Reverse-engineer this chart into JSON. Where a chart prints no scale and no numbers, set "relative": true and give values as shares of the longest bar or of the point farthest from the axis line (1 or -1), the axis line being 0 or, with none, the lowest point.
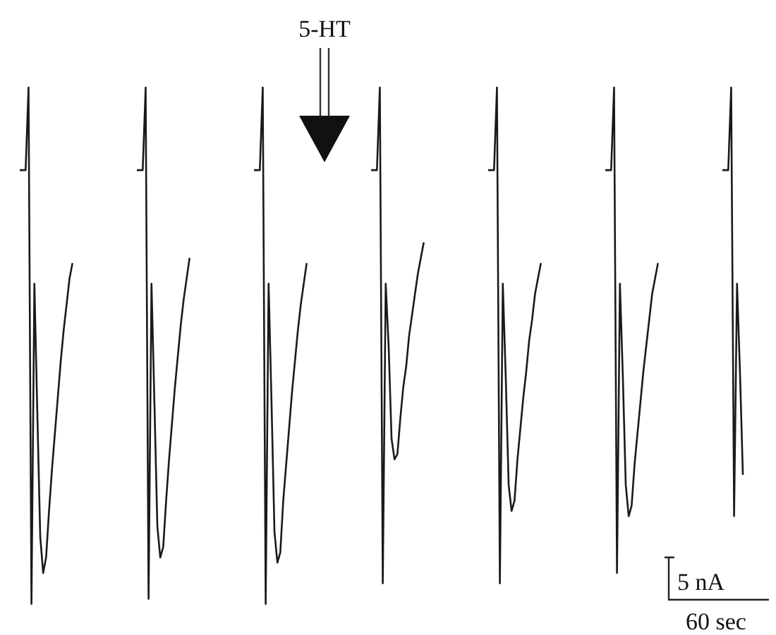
{
  "chart_data": {
    "type": "line",
    "relative": true,
    "annotations": [
      "5-HT",
      "5 nA",
      "60 sec"
    ],
    "categories": [
      null,
      null,
      null,
      null,
      null,
      null,
      null,
      null,
      null,
      null,
      null,
      null,
      null,
      null,
      null,
      null,
      null,
      null,
      null,
      null,
      null,
      null,
      null,
      null,
      null,
      null,
      null,
      null,
      null,
      null,
      null,
      null,
      null,
      null,
      null,
      null,
      null,
      null,
      null,
      null,
      null,
      null,
      null,
      null,
      null,
      null,
      null,
      null,
      null,
      null,
      null,
      null,
      null,
      null,
      null,
      null,
      null,
      null,
      null,
      null,
      null,
      null,
      null,
      null,
      null,
      null,
      null,
      null,
      null,
      null,
      null,
      null,
      null,
      null,
      null,
      null,
      null,
      null,
      null,
      null,
      null,
      null,
      null,
      null,
      null,
      null,
      null,
      null,
      null,
      null,
      null,
      null,
      null,
      null,
      null,
      null,
      null,
      null,
      null,
      null,
      null,
      null,
      null,
      null,
      null,
      null,
      null,
      null,
      null,
      null,
      null,
      null,
      null,
      null,
      null,
      null,
      null,
      null,
      null,
      null,
      null,
      null,
      null,
      null,
      null,
      null,
      null,
      null,
      null,
      null,
      null,
      null,
      null,
      null,
      null,
      null,
      null,
      null,
      null,
      null,
      null,
      null,
      null,
      null,
      null,
      null,
      null,
      null,
      null,
      null,
      null,
      null,
      null,
      null,
      null,
      null,
      null,
      null,
      null,
      null,
      null,
      null,
      null,
      null,
      null,
      null,
      null,
      null,
      null,
      null,
      null,
      null,
      null,
      null,
      null,
      null,
      null,
      null,
      null,
      null,
      null,
      null,
      null,
      null,
      null,
      null,
      null,
      null,
      null,
      null,
      null,
      null,
      null,
      null,
      null,
      null,
      null,
      null,
      null,
      null,
      null,
      null,
      null,
      null,
      null,
      null,
      null,
      null,
      null,
      null,
      null,
      null,
      null,
      null,
      null,
      null,
      null,
      null,
      null,
      null,
      null,
      null,
      null,
      null,
      null,
      null,
      null,
      null,
      null,
      null,
      null,
      null,
      null,
      null,
      null,
      null,
      null,
      null,
      null,
      null,
      null,
      null,
      null,
      null,
      null,
      null,
      null,
      null
    ],
    "series": [
      {
        "color": "#1a1a1a",
        "values": [
          0.84,
          0.84,
          0.84,
          1.0,
          0,
          0.62,
          0.37,
          0.13,
          0.06,
          0.09,
          0.18,
          0.26,
          0.33,
          0.4,
          0.47,
          0.53,
          0.58,
          0.63,
          0.66,
          null,
          null,
          null,
          null,
          null,
          null,
          null,
          null,
          null,
          null,
          null,
          null,
          null,
          null,
          null,
          null,
          null,
          null,
          null,
          null,
          null,
          null,
          null,
          null,
          null,
          null,
          null,
          null,
          null,
          null,
          null,
          null,
          null,
          null,
          null,
          null,
          null,
          null,
          null,
          null,
          null,
          null,
          null,
          null,
          null,
          null,
          null,
          null,
          null,
          null,
          null,
          null,
          null,
          null,
          null,
          null,
          null,
          null,
          null,
          null,
          null,
          null,
          null,
          null,
          null,
          null,
          null,
          null,
          null,
          null,
          null,
          null,
          null,
          null,
          null,
          null,
          null,
          null,
          null,
          null,
          null,
          null,
          null,
          null,
          null,
          null,
          null,
          null,
          null,
          null,
          null,
          null,
          null,
          null,
          null,
          null,
          null,
          null,
          null,
          null,
          null,
          null,
          null,
          null,
          null,
          null,
          null,
          null,
          null,
          null,
          null,
          null,
          null,
          null,
          null,
          null,
          null,
          null,
          null,
          null,
          null,
          null,
          null,
          null,
          null,
          null,
          null,
          null,
          null,
          null,
          null,
          null,
          null,
          null,
          null,
          null,
          null,
          null,
          null,
          null,
          null,
          null,
          null,
          null,
          null,
          null,
          null,
          null,
          null,
          null,
          null,
          null,
          null,
          null,
          null,
          null,
          null,
          null,
          null,
          null,
          null,
          null,
          null,
          null,
          null,
          null,
          null,
          null,
          null,
          null,
          null,
          null,
          null,
          null,
          null,
          null,
          null,
          null,
          null,
          null,
          null,
          null,
          null,
          null,
          null,
          null,
          null,
          null,
          null,
          null,
          null,
          null,
          null,
          null,
          null,
          null,
          null,
          null,
          null,
          null,
          null,
          null,
          null,
          null,
          null,
          null,
          null,
          null,
          null,
          null,
          null,
          null,
          null,
          null,
          null,
          null,
          null,
          null,
          null,
          null,
          null,
          null,
          null,
          null,
          null,
          null,
          null,
          null,
          null
        ]
      },
      {
        "color": "#1a1a1a",
        "values": [
          null,
          null,
          null,
          null,
          null,
          null,
          null,
          null,
          null,
          null,
          null,
          null,
          null,
          null,
          null,
          null,
          null,
          null,
          null,
          null,
          null,
          null,
          null,
          null,
          null,
          null,
          null,
          null,
          null,
          null,
          null,
          null,
          null,
          null,
          null,
          null,
          null,
          null,
          null,
          null,
          0.84,
          0.84,
          0.84,
          1.0,
          0.01,
          0.62,
          0.39,
          0.15,
          0.09,
          0.11,
          0.2,
          0.28,
          0.35,
          0.42,
          0.48,
          0.54,
          0.59,
          0.63,
          0.67,
          null,
          null,
          null,
          null,
          null,
          null,
          null,
          null,
          null,
          null,
          null,
          null,
          null,
          null,
          null,
          null,
          null,
          null,
          null,
          null,
          null,
          null,
          null,
          null,
          null,
          null,
          null,
          null,
          null,
          null,
          null,
          null,
          null,
          null,
          null,
          null,
          null,
          null,
          null,
          null,
          null,
          null,
          null,
          null,
          null,
          null,
          null,
          null,
          null,
          null,
          null,
          null,
          null,
          null,
          null,
          null,
          null,
          null,
          null,
          null,
          null,
          null,
          null,
          null,
          null,
          null,
          null,
          null,
          null,
          null,
          null,
          null,
          null,
          null,
          null,
          null,
          null,
          null,
          null,
          null,
          null,
          null,
          null,
          null,
          null,
          null,
          null,
          null,
          null,
          null,
          null,
          null,
          null,
          null,
          null,
          null,
          null,
          null,
          null,
          null,
          null,
          null,
          null,
          null,
          null,
          null,
          null,
          null,
          null,
          null,
          null,
          null,
          null,
          null,
          null,
          null,
          null,
          null,
          null,
          null,
          null,
          null,
          null,
          null,
          null,
          null,
          null,
          null,
          null,
          null,
          null,
          null,
          null,
          null,
          null,
          null,
          null,
          null,
          null,
          null,
          null,
          null,
          null,
          null,
          null,
          null,
          null,
          null,
          null,
          null,
          null,
          null,
          null,
          null,
          null,
          null,
          null,
          null,
          null,
          null,
          null,
          null,
          null,
          null,
          null,
          null,
          null,
          null,
          null,
          null,
          null,
          null,
          null,
          null,
          null,
          null,
          null,
          null,
          null,
          null,
          null,
          null,
          null,
          null,
          null,
          null,
          null,
          null,
          null
        ]
      },
      {
        "color": "#1a1a1a",
        "values": [
          null,
          null,
          null,
          null,
          null,
          null,
          null,
          null,
          null,
          null,
          null,
          null,
          null,
          null,
          null,
          null,
          null,
          null,
          null,
          null,
          null,
          null,
          null,
          null,
          null,
          null,
          null,
          null,
          null,
          null,
          null,
          null,
          null,
          null,
          null,
          null,
          null,
          null,
          null,
          null,
          null,
          null,
          null,
          null,
          null,
          null,
          null,
          null,
          null,
          null,
          null,
          null,
          null,
          null,
          null,
          null,
          null,
          null,
          null,
          null,
          null,
          null,
          null,
          null,
          null,
          null,
          null,
          null,
          null,
          null,
          null,
          null,
          null,
          null,
          null,
          null,
          null,
          null,
          null,
          null,
          0.84,
          0.84,
          0.84,
          1.0,
          0,
          0.62,
          0.39,
          0.14,
          0.08,
          0.1,
          0.2,
          0.27,
          0.34,
          0.41,
          0.47,
          0.53,
          0.58,
          0.62,
          0.66,
          null,
          null,
          null,
          null,
          null,
          null,
          null,
          null,
          null,
          null,
          null,
          null,
          null,
          null,
          null,
          null,
          null,
          null,
          null,
          null,
          null,
          null,
          null,
          null,
          null,
          null,
          null,
          null,
          null,
          null,
          null,
          null,
          null,
          null,
          null,
          null,
          null,
          null,
          null,
          null,
          null,
          null,
          null,
          null,
          null,
          null,
          null,
          null,
          null,
          null,
          null,
          null,
          null,
          null,
          null,
          null,
          null,
          null,
          null,
          null,
          null,
          null,
          null,
          null,
          null,
          null,
          null,
          null,
          null,
          null,
          null,
          null,
          null,
          null,
          null,
          null,
          null,
          null,
          null,
          null,
          null,
          null,
          null,
          null,
          null,
          null,
          null,
          null,
          null,
          null,
          null,
          null,
          null,
          null,
          null,
          null,
          null,
          null,
          null,
          null,
          null,
          null,
          null,
          null,
          null,
          null,
          null,
          null,
          null,
          null,
          null,
          null,
          null,
          null,
          null,
          null,
          null,
          null,
          null,
          null,
          null,
          null,
          null,
          null,
          null,
          null,
          null,
          null,
          null,
          null,
          null,
          null,
          null,
          null,
          null,
          null,
          null,
          null,
          null,
          null,
          null,
          null,
          null,
          null,
          null,
          null,
          null,
          null,
          null
        ]
      },
      {
        "color": "#1a1a1a",
        "values": [
          null,
          null,
          null,
          null,
          null,
          null,
          null,
          null,
          null,
          null,
          null,
          null,
          null,
          null,
          null,
          null,
          null,
          null,
          null,
          null,
          null,
          null,
          null,
          null,
          null,
          null,
          null,
          null,
          null,
          null,
          null,
          null,
          null,
          null,
          null,
          null,
          null,
          null,
          null,
          null,
          null,
          null,
          null,
          null,
          null,
          null,
          null,
          null,
          null,
          null,
          null,
          null,
          null,
          null,
          null,
          null,
          null,
          null,
          null,
          null,
          null,
          null,
          null,
          null,
          null,
          null,
          null,
          null,
          null,
          null,
          null,
          null,
          null,
          null,
          null,
          null,
          null,
          null,
          null,
          null,
          null,
          null,
          null,
          null,
          null,
          null,
          null,
          null,
          null,
          null,
          null,
          null,
          null,
          null,
          null,
          null,
          null,
          null,
          null,
          null,
          null,
          null,
          null,
          null,
          null,
          null,
          null,
          null,
          null,
          null,
          null,
          null,
          null,
          null,
          null,
          null,
          null,
          null,
          null,
          null,
          0.84,
          0.84,
          0.84,
          1.0,
          0.04,
          0.62,
          0.5,
          0.32,
          0.28,
          0.29,
          0.36,
          0.42,
          0.46,
          0.52,
          0.56,
          0.6,
          0.64,
          0.67,
          0.7,
          null,
          null,
          null,
          null,
          null,
          null,
          null,
          null,
          null,
          null,
          null,
          null,
          null,
          null,
          null,
          null,
          null,
          null,
          null,
          null,
          null,
          null,
          null,
          null,
          null,
          null,
          null,
          null,
          null,
          null,
          null,
          null,
          null,
          null,
          null,
          null,
          null,
          null,
          null,
          null,
          null,
          null,
          null,
          null,
          null,
          null,
          null,
          null,
          null,
          null,
          null,
          null,
          null,
          null,
          null,
          null,
          null,
          null,
          null,
          null,
          null,
          null,
          null,
          null,
          null,
          null,
          null,
          null,
          null,
          null,
          null,
          null,
          null,
          null,
          null,
          null,
          null,
          null,
          null,
          null,
          null,
          null,
          null,
          null,
          null,
          null,
          null,
          null,
          null,
          null,
          null,
          null,
          null,
          null,
          null,
          null,
          null,
          null,
          null,
          null,
          null,
          null,
          null,
          null,
          null,
          null,
          null,
          null,
          null
        ]
      },
      {
        "color": "#1a1a1a",
        "values": [
          null,
          null,
          null,
          null,
          null,
          null,
          null,
          null,
          null,
          null,
          null,
          null,
          null,
          null,
          null,
          null,
          null,
          null,
          null,
          null,
          null,
          null,
          null,
          null,
          null,
          null,
          null,
          null,
          null,
          null,
          null,
          null,
          null,
          null,
          null,
          null,
          null,
          null,
          null,
          null,
          null,
          null,
          null,
          null,
          null,
          null,
          null,
          null,
          null,
          null,
          null,
          null,
          null,
          null,
          null,
          null,
          null,
          null,
          null,
          null,
          null,
          null,
          null,
          null,
          null,
          null,
          null,
          null,
          null,
          null,
          null,
          null,
          null,
          null,
          null,
          null,
          null,
          null,
          null,
          null,
          null,
          null,
          null,
          null,
          null,
          null,
          null,
          null,
          null,
          null,
          null,
          null,
          null,
          null,
          null,
          null,
          null,
          null,
          null,
          null,
          null,
          null,
          null,
          null,
          null,
          null,
          null,
          null,
          null,
          null,
          null,
          null,
          null,
          null,
          null,
          null,
          null,
          null,
          null,
          null,
          null,
          null,
          null,
          null,
          null,
          null,
          null,
          null,
          null,
          null,
          null,
          null,
          null,
          null,
          null,
          null,
          null,
          null,
          null,
          null,
          null,
          null,
          null,
          null,
          null,
          null,
          null,
          null,
          null,
          null,
          null,
          null,
          null,
          null,
          null,
          null,
          null,
          null,
          null,
          null,
          0.84,
          0.84,
          0.84,
          1.0,
          0.04,
          0.62,
          0.44,
          0.23,
          0.18,
          0.2,
          0.28,
          0.34,
          0.4,
          0.45,
          0.51,
          0.55,
          0.6,
          0.63,
          0.66,
          null,
          null,
          null,
          null,
          null,
          null,
          null,
          null,
          null,
          null,
          null,
          null,
          null,
          null,
          null,
          null,
          null,
          null,
          null,
          null,
          null,
          null,
          null,
          null,
          null,
          null,
          null,
          null,
          null,
          null,
          null,
          null,
          null,
          null,
          null,
          null,
          null,
          null,
          null,
          null,
          null,
          null,
          null,
          null,
          null,
          null,
          null,
          null,
          null,
          null,
          null,
          null,
          null,
          null,
          null,
          null,
          null,
          null,
          null,
          null,
          null,
          null,
          null,
          null,
          null,
          null,
          null,
          null,
          null
        ]
      },
      {
        "color": "#1a1a1a",
        "values": [
          null,
          null,
          null,
          null,
          null,
          null,
          null,
          null,
          null,
          null,
          null,
          null,
          null,
          null,
          null,
          null,
          null,
          null,
          null,
          null,
          null,
          null,
          null,
          null,
          null,
          null,
          null,
          null,
          null,
          null,
          null,
          null,
          null,
          null,
          null,
          null,
          null,
          null,
          null,
          null,
          null,
          null,
          null,
          null,
          null,
          null,
          null,
          null,
          null,
          null,
          null,
          null,
          null,
          null,
          null,
          null,
          null,
          null,
          null,
          null,
          null,
          null,
          null,
          null,
          null,
          null,
          null,
          null,
          null,
          null,
          null,
          null,
          null,
          null,
          null,
          null,
          null,
          null,
          null,
          null,
          null,
          null,
          null,
          null,
          null,
          null,
          null,
          null,
          null,
          null,
          null,
          null,
          null,
          null,
          null,
          null,
          null,
          null,
          null,
          null,
          null,
          null,
          null,
          null,
          null,
          null,
          null,
          null,
          null,
          null,
          null,
          null,
          null,
          null,
          null,
          null,
          null,
          null,
          null,
          null,
          null,
          null,
          null,
          null,
          null,
          null,
          null,
          null,
          null,
          null,
          null,
          null,
          null,
          null,
          null,
          null,
          null,
          null,
          null,
          null,
          null,
          null,
          null,
          null,
          null,
          null,
          null,
          null,
          null,
          null,
          null,
          null,
          null,
          null,
          null,
          null,
          null,
          null,
          null,
          null,
          null,
          null,
          null,
          null,
          null,
          null,
          null,
          null,
          null,
          null,
          null,
          null,
          null,
          null,
          null,
          null,
          null,
          null,
          null,
          null,
          null,
          null,
          null,
          null,
          null,
          null,
          null,
          null,
          null,
          null,
          null,
          null,
          null,
          null,
          null,
          null,
          null,
          null,
          null,
          null,
          0.84,
          0.84,
          0.84,
          1.0,
          0.06,
          0.62,
          0.44,
          0.23,
          0.17,
          0.19,
          0.27,
          0.33,
          0.39,
          0.45,
          0.5,
          0.55,
          0.6,
          0.63,
          0.66,
          null,
          null,
          null,
          null,
          null,
          null,
          null,
          null,
          null,
          null,
          null,
          null,
          null,
          null,
          null,
          null,
          null,
          null,
          null,
          null,
          null,
          null,
          null,
          null,
          null,
          null,
          null,
          null,
          null
        ]
      },
      {
        "color": "#1a1a1a",
        "values": [
          null,
          null,
          null,
          null,
          null,
          null,
          null,
          null,
          null,
          null,
          null,
          null,
          null,
          null,
          null,
          null,
          null,
          null,
          null,
          null,
          null,
          null,
          null,
          null,
          null,
          null,
          null,
          null,
          null,
          null,
          null,
          null,
          null,
          null,
          null,
          null,
          null,
          null,
          null,
          null,
          null,
          null,
          null,
          null,
          null,
          null,
          null,
          null,
          null,
          null,
          null,
          null,
          null,
          null,
          null,
          null,
          null,
          null,
          null,
          null,
          null,
          null,
          null,
          null,
          null,
          null,
          null,
          null,
          null,
          null,
          null,
          null,
          null,
          null,
          null,
          null,
          null,
          null,
          null,
          null,
          null,
          null,
          null,
          null,
          null,
          null,
          null,
          null,
          null,
          null,
          null,
          null,
          null,
          null,
          null,
          null,
          null,
          null,
          null,
          null,
          null,
          null,
          null,
          null,
          null,
          null,
          null,
          null,
          null,
          null,
          null,
          null,
          null,
          null,
          null,
          null,
          null,
          null,
          null,
          null,
          null,
          null,
          null,
          null,
          null,
          null,
          null,
          null,
          null,
          null,
          null,
          null,
          null,
          null,
          null,
          null,
          null,
          null,
          null,
          null,
          null,
          null,
          null,
          null,
          null,
          null,
          null,
          null,
          null,
          null,
          null,
          null,
          null,
          null,
          null,
          null,
          null,
          null,
          null,
          null,
          null,
          null,
          null,
          null,
          null,
          null,
          null,
          null,
          null,
          null,
          null,
          null,
          null,
          null,
          null,
          null,
          null,
          null,
          null,
          null,
          null,
          null,
          null,
          null,
          null,
          null,
          null,
          null,
          null,
          null,
          null,
          null,
          null,
          null,
          null,
          null,
          null,
          null,
          null,
          null,
          null,
          null,
          null,
          null,
          null,
          null,
          null,
          null,
          null,
          null,
          null,
          null,
          null,
          null,
          null,
          null,
          null,
          null,
          null,
          null,
          null,
          null,
          null,
          null,
          null,
          null,
          null,
          null,
          null,
          null,
          null,
          null,
          null,
          null,
          null,
          null,
          null,
          null,
          null,
          null,
          0.84,
          0.84,
          0.84,
          1.0,
          0.17,
          0.62,
          0.45,
          0.25
        ]
      }
    ]
  }
}
